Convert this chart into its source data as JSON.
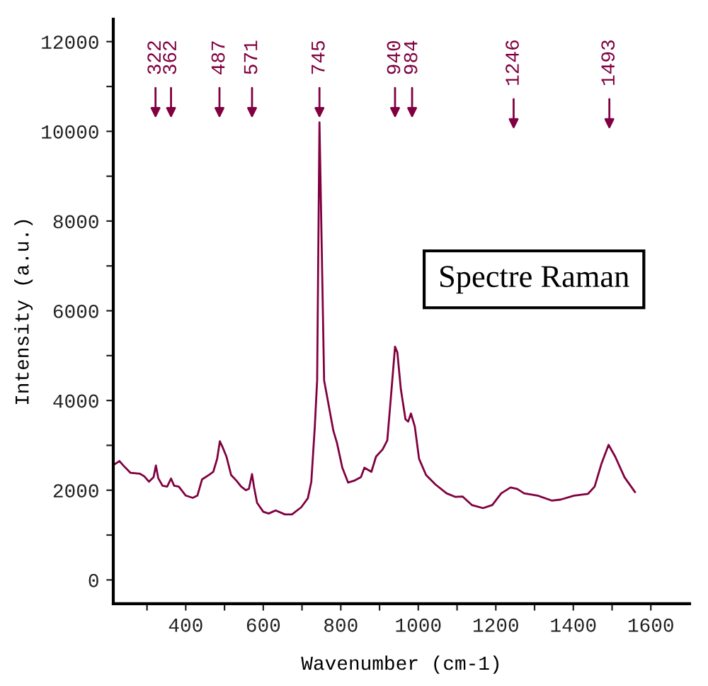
{
  "chart_data": {
    "type": "line",
    "xlabel": "Wavenumber (cm-1)",
    "ylabel": "Intensity (a.u.)",
    "xlim": [
      213,
      1700
    ],
    "ylim": [
      -530,
      12500
    ],
    "xticks": [
      {
        "value": 300,
        "label": null
      },
      400,
      {
        "value": 500,
        "label": null
      },
      600,
      {
        "value": 700,
        "label": null
      },
      800,
      {
        "value": 900,
        "label": null
      },
      1000,
      {
        "value": 1100,
        "label": null
      },
      1200,
      {
        "value": 1300,
        "label": null
      },
      1400,
      {
        "value": 1500,
        "label": null
      },
      1600
    ],
    "yticks": [
      0,
      {
        "value": 1000,
        "label": null
      },
      2000,
      {
        "value": 3000,
        "label": null
      },
      4000,
      {
        "value": 5000,
        "label": null
      },
      6000,
      {
        "value": 7000,
        "label": null
      },
      8000,
      {
        "value": 9000,
        "label": null
      },
      10000,
      {
        "value": 11000,
        "label": null
      },
      12000
    ],
    "grid": false,
    "legend": false,
    "marker": "none",
    "line_style": "solid",
    "series": [
      {
        "color": "#800040",
        "x": [
          215,
          229,
          239,
          257,
          281,
          293,
          305,
          317,
          323,
          329,
          340,
          352,
          362,
          370,
          382,
          400,
          418,
          430,
          442,
          460,
          471,
          481,
          488,
          495,
          505,
          517,
          531,
          543,
          555,
          563,
          571,
          576,
          584,
          600,
          614,
          632,
          656,
          674,
          698,
          715,
          724,
          733,
          739,
          745,
          757,
          781,
          790,
          804,
          819,
          834,
          852,
          861,
          879,
          891,
          908,
          920,
          929,
          940,
          946,
          955,
          967,
          974,
          981,
          991,
          1002,
          1020,
          1044,
          1073,
          1096,
          1114,
          1138,
          1167,
          1191,
          1214,
          1238,
          1255,
          1273,
          1308,
          1344,
          1367,
          1402,
          1438,
          1455,
          1473,
          1491,
          1508,
          1532,
          1559
        ],
        "values": [
          2570,
          2650,
          2550,
          2390,
          2370,
          2310,
          2190,
          2290,
          2550,
          2270,
          2100,
          2080,
          2260,
          2100,
          2080,
          1880,
          1830,
          1880,
          2240,
          2340,
          2410,
          2700,
          3090,
          2960,
          2750,
          2340,
          2210,
          2080,
          2000,
          2030,
          2360,
          2080,
          1720,
          1520,
          1480,
          1550,
          1460,
          1460,
          1620,
          1820,
          2190,
          3420,
          4450,
          10200,
          4450,
          3320,
          3060,
          2500,
          2170,
          2210,
          2290,
          2500,
          2410,
          2750,
          2910,
          3110,
          4040,
          5200,
          5070,
          4250,
          3580,
          3530,
          3710,
          3420,
          2700,
          2340,
          2130,
          1930,
          1850,
          1860,
          1670,
          1600,
          1670,
          1930,
          2060,
          2030,
          1930,
          1880,
          1770,
          1790,
          1880,
          1920,
          2080,
          2600,
          3010,
          2750,
          2290,
          1960
        ]
      }
    ],
    "annotations": [
      {
        "text": "322",
        "x": 322
      },
      {
        "text": "362",
        "x": 362
      },
      {
        "text": "487",
        "x": 487
      },
      {
        "text": "571",
        "x": 571
      },
      {
        "text": "745",
        "x": 745
      },
      {
        "text": "940",
        "x": 940
      },
      {
        "text": "984",
        "x": 984
      },
      {
        "text": "1246",
        "x": 1246
      },
      {
        "text": "1493",
        "x": 1493
      },
      "Spectre Raman"
    ]
  }
}
